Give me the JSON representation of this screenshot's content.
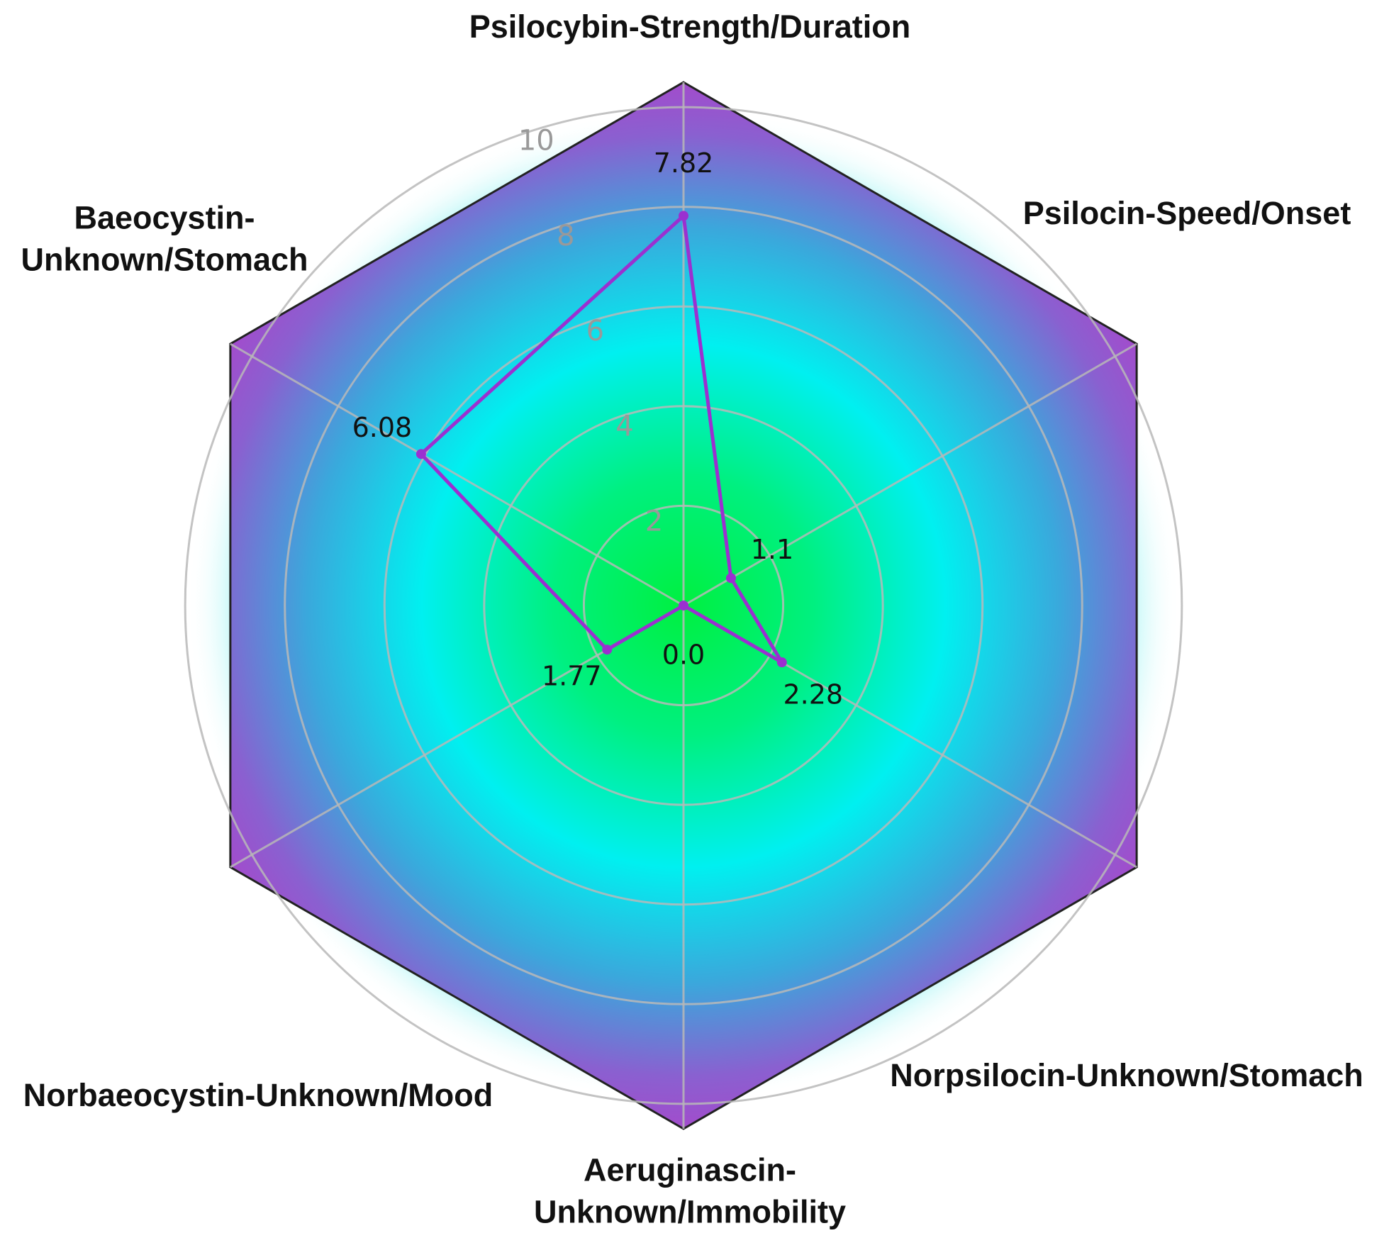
{
  "chart_data": {
    "type": "radar",
    "categories": [
      "Psilocybin-Strength/Duration",
      "Psilocin-Speed/Onset",
      "Norpsilocin-Unknown/Stomach",
      "Aeruginascin-Unknown/Immobility",
      "Norbaeocystin-Unknown/Mood",
      "Baeocystin-Unknown/Stomach"
    ],
    "values": [
      7.82,
      1.1,
      2.28,
      0.0,
      1.77,
      6.08
    ],
    "value_labels": [
      "7.82",
      "1.1",
      "2.28",
      "0.0",
      "1.77",
      "6.08"
    ],
    "color": "#9b30d0",
    "ylim": [
      0,
      10.5
    ],
    "yticks": [
      2,
      4,
      6,
      8,
      10
    ],
    "grid": true
  }
}
